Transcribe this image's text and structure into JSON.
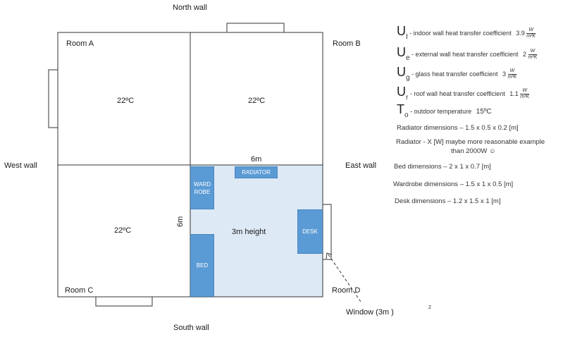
{
  "walls": {
    "north": "North wall",
    "south": "South wall",
    "west": "West wall",
    "east": "East wall"
  },
  "rooms": {
    "a": "Room A",
    "b": "Room B",
    "c": "Room C",
    "d": "Room D"
  },
  "temps": {
    "a": "22ºC",
    "b": "22ºC",
    "c": "22ºC"
  },
  "dimensions": {
    "width": "6m",
    "depth": "6m",
    "height": "3m height"
  },
  "furniture": {
    "radiator": "RADIATOR",
    "wardrobe_line1": "WARD",
    "wardrobe_line2": "ROBE",
    "bed": "BED",
    "desk": "DESK"
  },
  "window_label": "Window (3m  )",
  "window_superscript": "2",
  "legend": {
    "ui": {
      "symbol": "U",
      "subscript": "I",
      "text": " - indoor wall heat transfer coefficient",
      "value": "3.9",
      "num": "W",
      "den": "m²K"
    },
    "ue": {
      "symbol": "U",
      "subscript": "e",
      "text": " - external wall heat transfer coefficient",
      "value": "2",
      "num": "W",
      "den": "m²K"
    },
    "ug": {
      "symbol": "U",
      "subscript": "g",
      "text": " - glass heat transfer coefficient",
      "value": "3",
      "num": "W",
      "den": "m²K"
    },
    "ur": {
      "symbol": "U",
      "subscript": "r",
      "text": " - roof wall heat transfer coefficient",
      "value": "1.1",
      "num": "W",
      "den": "m²K"
    },
    "to": {
      "symbol": "T",
      "subscript": "o",
      "text": " - outdoor temperature",
      "value": "15ºC"
    }
  },
  "notes": {
    "radiator_dims": "Radiator dimensions – 1.5 x 0.5 x 0.2 [m]",
    "radiator_power_1": "Radiator - X [W] maybe more reasonable example",
    "radiator_power_2": "than 2000W ☺",
    "bed_dims": "Bed dimensions – 2 x 1 x 0.7 [m]",
    "wardrobe_dims": "Wardrobe dimensions – 1.5 x 1 x 0.5 [m]",
    "desk_dims": "Desk dimensions – 1.2 x 1.5 x 1 [m]"
  },
  "colors": {
    "room_d_fill": "#dde9f5",
    "furniture": "#5b9bd5",
    "walls": "#333333"
  }
}
